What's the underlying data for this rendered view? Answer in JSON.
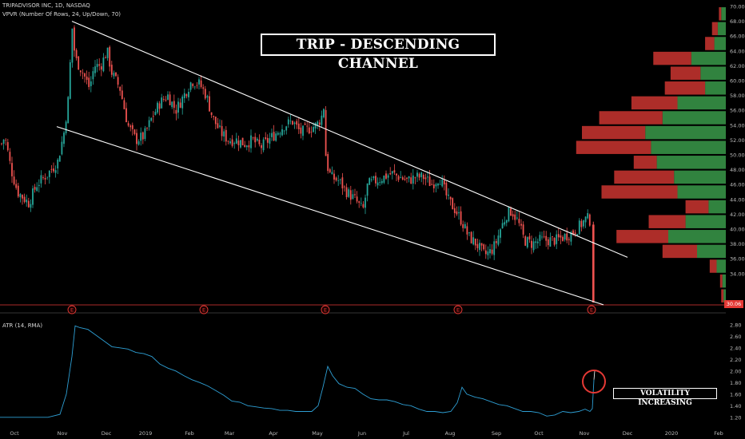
{
  "header": {
    "symbol_line": "TRIPADVISOR INC, 1D, NASDAQ",
    "indicator_line": "VPVR (Number Of Rows, 24, Up/Down, 70)",
    "atr_label": "ATR (14, RMA)"
  },
  "annotations": {
    "title": "TRIP - DESCENDING CHANNEL",
    "volatility": "VOLATILITY INCREASING",
    "last_price": "30.06",
    "earnings_marker": "E"
  },
  "colors": {
    "background": "#000000",
    "up_candle": "#26a69a",
    "down_candle": "#ef5350",
    "vp_up": "#3a9a4a",
    "vp_down": "#c0322e",
    "atr_line": "#2e9fd4",
    "channel": "#ffffff",
    "earnings": "#e53935"
  },
  "chart_data": [
    {
      "type": "candlestick",
      "name": "price",
      "x_ticks": [
        "Oct",
        "Nov",
        "Dec",
        "2019",
        "Feb",
        "Mar",
        "Apr",
        "May",
        "Jun",
        "Jul",
        "Aug",
        "Sep",
        "Oct",
        "Nov",
        "Dec",
        "2020",
        "Feb"
      ],
      "y_ticks": [
        34,
        36,
        38,
        40,
        42,
        44,
        46,
        48,
        50,
        52,
        54,
        56,
        58,
        60,
        62,
        64,
        66,
        68,
        70
      ],
      "ylim": [
        30,
        70
      ],
      "path": [
        [
          0,
          51
        ],
        [
          6,
          52.5
        ],
        [
          14,
          48
        ],
        [
          22,
          45
        ],
        [
          36,
          43.5
        ],
        [
          46,
          46
        ],
        [
          60,
          47.5
        ],
        [
          72,
          49
        ],
        [
          80,
          53
        ],
        [
          86,
          58
        ],
        [
          90,
          67.5
        ],
        [
          94,
          63
        ],
        [
          104,
          61
        ],
        [
          112,
          59
        ],
        [
          118,
          62
        ],
        [
          126,
          62
        ],
        [
          134,
          64
        ],
        [
          140,
          61
        ],
        [
          150,
          59
        ],
        [
          160,
          54
        ],
        [
          170,
          52
        ],
        [
          180,
          52.5
        ],
        [
          190,
          55
        ],
        [
          200,
          57
        ],
        [
          210,
          58
        ],
        [
          220,
          56
        ],
        [
          230,
          58
        ],
        [
          240,
          60
        ],
        [
          250,
          59.5
        ],
        [
          258,
          58
        ],
        [
          266,
          55
        ],
        [
          276,
          53
        ],
        [
          286,
          52
        ],
        [
          296,
          52
        ],
        [
          306,
          51.5
        ],
        [
          316,
          52
        ],
        [
          326,
          51
        ],
        [
          336,
          52
        ],
        [
          346,
          53
        ],
        [
          356,
          54
        ],
        [
          366,
          54.5
        ],
        [
          376,
          53
        ],
        [
          386,
          53.5
        ],
        [
          396,
          54
        ],
        [
          402,
          55
        ],
        [
          405,
          56.5
        ],
        [
          408,
          49
        ],
        [
          414,
          47
        ],
        [
          424,
          46.5
        ],
        [
          434,
          45
        ],
        [
          444,
          44
        ],
        [
          454,
          42.5
        ],
        [
          460,
          46
        ],
        [
          470,
          46.5
        ],
        [
          480,
          47
        ],
        [
          490,
          47.5
        ],
        [
          500,
          47
        ],
        [
          510,
          46.5
        ],
        [
          520,
          47
        ],
        [
          530,
          47
        ],
        [
          540,
          46
        ],
        [
          550,
          47
        ],
        [
          560,
          44
        ],
        [
          570,
          42.5
        ],
        [
          578,
          41
        ],
        [
          586,
          39
        ],
        [
          596,
          38
        ],
        [
          606,
          36.5
        ],
        [
          614,
          37
        ],
        [
          620,
          38
        ],
        [
          626,
          40
        ],
        [
          634,
          42
        ],
        [
          640,
          42.5
        ],
        [
          648,
          41
        ],
        [
          656,
          38.5
        ],
        [
          666,
          38
        ],
        [
          676,
          38.5
        ],
        [
          686,
          38.5
        ],
        [
          696,
          38.5
        ],
        [
          706,
          39
        ],
        [
          716,
          39.5
        ],
        [
          726,
          40.5
        ],
        [
          734,
          41.5
        ],
        [
          740,
          41
        ],
        [
          742,
          36
        ],
        [
          744,
          30.1
        ]
      ],
      "channel": {
        "upper": {
          "start": [
            "Nov",
            68
          ],
          "end": [
            "Nov",
            39
          ]
        },
        "lower": {
          "start": [
            "Nov",
            55
          ],
          "end": [
            "Nov",
            30
          ]
        }
      },
      "volume_profile": [
        {
          "price": 69,
          "up": 0.04,
          "down": 0.02
        },
        {
          "price": 67,
          "up": 0.07,
          "down": 0.05
        },
        {
          "price": 65,
          "up": 0.1,
          "down": 0.08
        },
        {
          "price": 63,
          "up": 0.3,
          "down": 0.33
        },
        {
          "price": 61,
          "up": 0.22,
          "down": 0.26
        },
        {
          "price": 59,
          "up": 0.18,
          "down": 0.35
        },
        {
          "price": 57,
          "up": 0.42,
          "down": 0.4
        },
        {
          "price": 55,
          "up": 0.55,
          "down": 0.55
        },
        {
          "price": 53,
          "up": 0.7,
          "down": 0.55
        },
        {
          "price": 51,
          "up": 0.65,
          "down": 0.65
        },
        {
          "price": 49,
          "up": 0.6,
          "down": 0.2
        },
        {
          "price": 47,
          "up": 0.45,
          "down": 0.52
        },
        {
          "price": 45,
          "up": 0.42,
          "down": 0.66
        },
        {
          "price": 43,
          "up": 0.15,
          "down": 0.2
        },
        {
          "price": 41,
          "up": 0.35,
          "down": 0.32
        },
        {
          "price": 39,
          "up": 0.5,
          "down": 0.45
        },
        {
          "price": 37,
          "up": 0.25,
          "down": 0.3
        },
        {
          "price": 35,
          "up": 0.08,
          "down": 0.06
        },
        {
          "price": 33,
          "up": 0.03,
          "down": 0.02
        },
        {
          "price": 31,
          "up": 0.02,
          "down": 0.02
        }
      ]
    },
    {
      "type": "line",
      "name": "ATR (14, RMA)",
      "y_ticks": [
        1.2,
        1.4,
        1.6,
        1.8,
        2.0,
        2.2,
        2.4,
        2.6,
        2.8
      ],
      "ylim": [
        1.1,
        2.95
      ],
      "points": [
        [
          0,
          1.2
        ],
        [
          20,
          1.2
        ],
        [
          40,
          1.2
        ],
        [
          60,
          1.2
        ],
        [
          75,
          1.25
        ],
        [
          83,
          1.6
        ],
        [
          90,
          2.25
        ],
        [
          94,
          2.78
        ],
        [
          100,
          2.75
        ],
        [
          110,
          2.72
        ],
        [
          120,
          2.62
        ],
        [
          130,
          2.52
        ],
        [
          140,
          2.42
        ],
        [
          150,
          2.4
        ],
        [
          160,
          2.38
        ],
        [
          170,
          2.32
        ],
        [
          180,
          2.3
        ],
        [
          190,
          2.25
        ],
        [
          200,
          2.12
        ],
        [
          210,
          2.05
        ],
        [
          220,
          2.0
        ],
        [
          230,
          1.92
        ],
        [
          240,
          1.85
        ],
        [
          250,
          1.8
        ],
        [
          260,
          1.74
        ],
        [
          270,
          1.66
        ],
        [
          280,
          1.58
        ],
        [
          290,
          1.48
        ],
        [
          300,
          1.46
        ],
        [
          310,
          1.4
        ],
        [
          320,
          1.38
        ],
        [
          330,
          1.36
        ],
        [
          340,
          1.35
        ],
        [
          350,
          1.32
        ],
        [
          360,
          1.32
        ],
        [
          370,
          1.3
        ],
        [
          380,
          1.3
        ],
        [
          390,
          1.3
        ],
        [
          398,
          1.4
        ],
        [
          404,
          1.72
        ],
        [
          410,
          2.08
        ],
        [
          416,
          1.92
        ],
        [
          424,
          1.78
        ],
        [
          434,
          1.72
        ],
        [
          444,
          1.7
        ],
        [
          454,
          1.6
        ],
        [
          464,
          1.52
        ],
        [
          474,
          1.5
        ],
        [
          484,
          1.5
        ],
        [
          494,
          1.47
        ],
        [
          504,
          1.42
        ],
        [
          514,
          1.4
        ],
        [
          524,
          1.34
        ],
        [
          534,
          1.3
        ],
        [
          544,
          1.3
        ],
        [
          554,
          1.28
        ],
        [
          564,
          1.3
        ],
        [
          572,
          1.45
        ],
        [
          578,
          1.72
        ],
        [
          584,
          1.6
        ],
        [
          594,
          1.55
        ],
        [
          604,
          1.52
        ],
        [
          614,
          1.47
        ],
        [
          624,
          1.42
        ],
        [
          634,
          1.4
        ],
        [
          644,
          1.35
        ],
        [
          654,
          1.3
        ],
        [
          664,
          1.3
        ],
        [
          674,
          1.28
        ],
        [
          684,
          1.22
        ],
        [
          694,
          1.24
        ],
        [
          704,
          1.3
        ],
        [
          714,
          1.28
        ],
        [
          724,
          1.3
        ],
        [
          732,
          1.34
        ],
        [
          738,
          1.3
        ],
        [
          741,
          1.35
        ],
        [
          743,
          1.85
        ]
      ]
    }
  ]
}
